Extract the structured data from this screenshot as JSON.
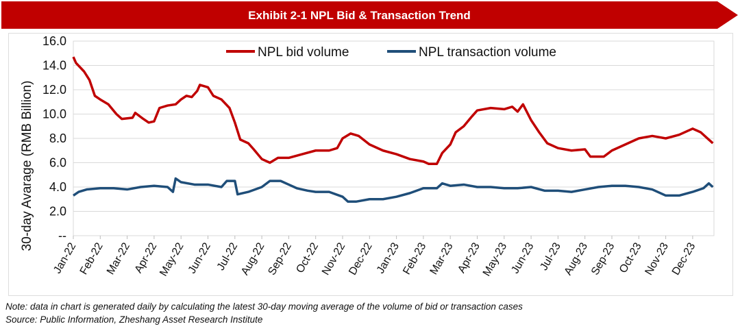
{
  "title": "Exhibit 2-1 NPL Bid & Transaction Trend",
  "note": "Note: data in chart is generated daily by calculating the latest 30-day moving average of the volume of bid or transaction cases",
  "source": "Source: Public Information, Zheshang Asset Research Institute",
  "chart_data": {
    "type": "line",
    "title": "Exhibit 2-1 NPL Bid & Transaction Trend",
    "xlabel": "",
    "ylabel": "30-day Avarage (RMB Billion)",
    "ylim": [
      0,
      16
    ],
    "xlim": [
      0,
      23.75
    ],
    "x_unit": "months since Jan-22",
    "yticks": [
      "--",
      "2.0",
      "4.0",
      "6.0",
      "8.0",
      "10.0",
      "12.0",
      "14.0",
      "16.0"
    ],
    "categories": [
      "Jan-22",
      "Feb-22",
      "Mar-22",
      "Apr-22",
      "May-22",
      "Jun-22",
      "Jul-22",
      "Aug-22",
      "Sep-22",
      "Oct-22",
      "Nov-22",
      "Dec-22",
      "Jan-23",
      "Feb-23",
      "Mar-23",
      "Apr-23",
      "May-23",
      "Jun-23",
      "Jul-23",
      "Aug-23",
      "Sep-23",
      "Oct-23",
      "Nov-23",
      "Dec-23"
    ],
    "grid": true,
    "legend": "top-center",
    "colors": {
      "bid": "#c00000",
      "transaction": "#1f4e79"
    },
    "series": [
      {
        "name": "NPL bid volume",
        "points": [
          [
            0,
            14.7
          ],
          [
            0.1,
            14.2
          ],
          [
            0.4,
            13.5
          ],
          [
            0.6,
            12.8
          ],
          [
            0.8,
            11.5
          ],
          [
            1.0,
            11.2
          ],
          [
            1.3,
            10.8
          ],
          [
            1.6,
            10.0
          ],
          [
            1.8,
            9.6
          ],
          [
            2.2,
            9.7
          ],
          [
            2.3,
            10.1
          ],
          [
            2.6,
            9.6
          ],
          [
            2.8,
            9.3
          ],
          [
            3.0,
            9.4
          ],
          [
            3.2,
            10.5
          ],
          [
            3.5,
            10.7
          ],
          [
            3.8,
            10.8
          ],
          [
            4.0,
            11.2
          ],
          [
            4.2,
            11.5
          ],
          [
            4.4,
            11.4
          ],
          [
            4.6,
            11.9
          ],
          [
            4.7,
            12.4
          ],
          [
            5.0,
            12.2
          ],
          [
            5.2,
            11.5
          ],
          [
            5.5,
            11.2
          ],
          [
            5.8,
            10.5
          ],
          [
            6.0,
            9.3
          ],
          [
            6.2,
            7.9
          ],
          [
            6.5,
            7.6
          ],
          [
            6.7,
            7.1
          ],
          [
            7.0,
            6.3
          ],
          [
            7.3,
            6.0
          ],
          [
            7.6,
            6.4
          ],
          [
            8.0,
            6.4
          ],
          [
            8.5,
            6.7
          ],
          [
            9.0,
            7.0
          ],
          [
            9.5,
            7.0
          ],
          [
            9.8,
            7.2
          ],
          [
            10.0,
            8.0
          ],
          [
            10.3,
            8.4
          ],
          [
            10.6,
            8.2
          ],
          [
            11.0,
            7.5
          ],
          [
            11.5,
            7.0
          ],
          [
            12.0,
            6.7
          ],
          [
            12.5,
            6.3
          ],
          [
            13.0,
            6.1
          ],
          [
            13.2,
            5.9
          ],
          [
            13.5,
            5.9
          ],
          [
            13.7,
            6.8
          ],
          [
            14.0,
            7.5
          ],
          [
            14.2,
            8.5
          ],
          [
            14.5,
            9.0
          ],
          [
            14.8,
            9.8
          ],
          [
            15.0,
            10.3
          ],
          [
            15.5,
            10.5
          ],
          [
            16.0,
            10.4
          ],
          [
            16.3,
            10.6
          ],
          [
            16.5,
            10.2
          ],
          [
            16.7,
            10.8
          ],
          [
            17.0,
            9.5
          ],
          [
            17.3,
            8.5
          ],
          [
            17.6,
            7.6
          ],
          [
            18.0,
            7.2
          ],
          [
            18.5,
            7.0
          ],
          [
            19.0,
            7.1
          ],
          [
            19.2,
            6.5
          ],
          [
            19.7,
            6.5
          ],
          [
            20.0,
            7.0
          ],
          [
            20.5,
            7.5
          ],
          [
            21.0,
            8.0
          ],
          [
            21.5,
            8.2
          ],
          [
            22.0,
            8.0
          ],
          [
            22.5,
            8.3
          ],
          [
            23.0,
            8.8
          ],
          [
            23.3,
            8.5
          ],
          [
            23.6,
            7.9
          ],
          [
            23.75,
            7.6
          ]
        ]
      },
      {
        "name": "NPL transaction volume",
        "points": [
          [
            0,
            3.3
          ],
          [
            0.2,
            3.6
          ],
          [
            0.5,
            3.8
          ],
          [
            1.0,
            3.9
          ],
          [
            1.5,
            3.9
          ],
          [
            2.0,
            3.8
          ],
          [
            2.5,
            4.0
          ],
          [
            3.0,
            4.1
          ],
          [
            3.5,
            4.0
          ],
          [
            3.7,
            3.6
          ],
          [
            3.8,
            4.7
          ],
          [
            4.0,
            4.4
          ],
          [
            4.5,
            4.2
          ],
          [
            5.0,
            4.2
          ],
          [
            5.5,
            4.0
          ],
          [
            5.7,
            4.5
          ],
          [
            6.0,
            4.5
          ],
          [
            6.1,
            3.4
          ],
          [
            6.5,
            3.6
          ],
          [
            7.0,
            4.0
          ],
          [
            7.3,
            4.5
          ],
          [
            7.7,
            4.5
          ],
          [
            8.0,
            4.2
          ],
          [
            8.3,
            3.9
          ],
          [
            8.7,
            3.7
          ],
          [
            9.0,
            3.6
          ],
          [
            9.5,
            3.6
          ],
          [
            10.0,
            3.2
          ],
          [
            10.2,
            2.8
          ],
          [
            10.5,
            2.8
          ],
          [
            11.0,
            3.0
          ],
          [
            11.5,
            3.0
          ],
          [
            12.0,
            3.2
          ],
          [
            12.5,
            3.5
          ],
          [
            13.0,
            3.9
          ],
          [
            13.5,
            3.9
          ],
          [
            13.7,
            4.3
          ],
          [
            14.0,
            4.1
          ],
          [
            14.5,
            4.2
          ],
          [
            15.0,
            4.0
          ],
          [
            15.5,
            4.0
          ],
          [
            16.0,
            3.9
          ],
          [
            16.5,
            3.9
          ],
          [
            17.0,
            4.0
          ],
          [
            17.5,
            3.7
          ],
          [
            18.0,
            3.7
          ],
          [
            18.5,
            3.6
          ],
          [
            19.0,
            3.8
          ],
          [
            19.5,
            4.0
          ],
          [
            20.0,
            4.1
          ],
          [
            20.5,
            4.1
          ],
          [
            21.0,
            4.0
          ],
          [
            21.5,
            3.8
          ],
          [
            22.0,
            3.3
          ],
          [
            22.5,
            3.3
          ],
          [
            23.0,
            3.6
          ],
          [
            23.4,
            3.9
          ],
          [
            23.6,
            4.3
          ],
          [
            23.75,
            4.0
          ]
        ]
      }
    ]
  }
}
